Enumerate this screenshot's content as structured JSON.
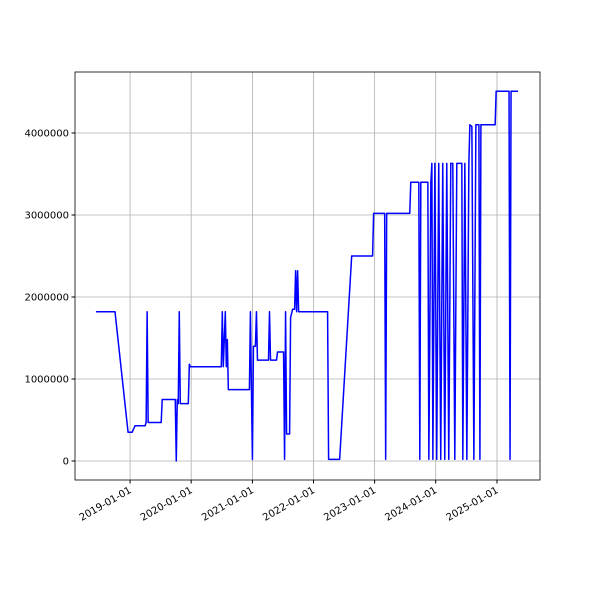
{
  "chart_data": {
    "type": "line",
    "x": [
      "2018-06-11",
      "2018-10-03",
      "2018-12-20",
      "2019-01-13",
      "2019-01-31",
      "2019-04-01",
      "2019-04-07",
      "2019-04-13",
      "2019-04-19",
      "2019-07-06",
      "2019-07-12",
      "2019-09-28",
      "2019-10-04",
      "2019-10-10",
      "2019-10-16",
      "2019-10-22",
      "2019-10-28",
      "2019-12-15",
      "2019-12-21",
      "2019-12-27",
      "2020-06-29",
      "2020-07-05",
      "2020-07-11",
      "2020-07-23",
      "2020-07-29",
      "2020-08-04",
      "2020-08-10",
      "2020-12-14",
      "2020-12-20",
      "2020-12-26",
      "2021-01-01",
      "2021-01-07",
      "2021-01-19",
      "2021-01-25",
      "2021-01-31",
      "2021-04-07",
      "2021-04-13",
      "2021-04-19",
      "2021-05-25",
      "2021-05-31",
      "2021-07-06",
      "2021-07-12",
      "2021-07-18",
      "2021-07-24",
      "2021-08-11",
      "2021-08-17",
      "2021-08-29",
      "2021-09-10",
      "2021-09-16",
      "2021-09-22",
      "2021-09-28",
      "2021-10-04",
      "2022-03-26",
      "2022-04-01",
      "2022-06-06",
      "2022-08-17",
      "2022-10-04",
      "2022-12-20",
      "2022-12-26",
      "2023-03-02",
      "2023-03-08",
      "2023-03-14",
      "2023-07-30",
      "2023-08-05",
      "2023-09-22",
      "2023-09-28",
      "2023-10-04",
      "2023-11-15",
      "2023-11-21",
      "2023-12-03",
      "2023-12-09",
      "2023-12-15",
      "2023-12-27",
      "2024-01-07",
      "2024-01-19",
      "2024-01-31",
      "2024-02-12",
      "2024-02-24",
      "2024-03-07",
      "2024-03-19",
      "2024-03-31",
      "2024-04-12",
      "2024-04-24",
      "2024-05-06",
      "2024-06-05",
      "2024-06-11",
      "2024-06-23",
      "2024-07-05",
      "2024-07-17",
      "2024-07-23",
      "2024-08-04",
      "2024-08-16",
      "2024-08-28",
      "2024-09-15",
      "2024-09-21",
      "2024-09-27",
      "2024-12-21",
      "2024-12-27",
      "2025-03-14",
      "2025-03-20",
      "2025-03-26",
      "2025-05-07"
    ],
    "series": [
      {
        "color": "#0000ff",
        "values": [
          1820000,
          1820000,
          350000,
          350000,
          430000,
          430000,
          470000,
          1820000,
          470000,
          470000,
          750000,
          750000,
          0,
          750000,
          700000,
          1820000,
          700000,
          700000,
          1180000,
          1150000,
          1150000,
          1820000,
          1150000,
          1820000,
          1150000,
          1480000,
          870000,
          870000,
          1820000,
          870000,
          20000,
          1400000,
          1400000,
          1820000,
          1230000,
          1230000,
          1820000,
          1230000,
          1230000,
          1330000,
          1330000,
          20000,
          1820000,
          330000,
          330000,
          1750000,
          1850000,
          1850000,
          2320000,
          1820000,
          2320000,
          1820000,
          1820000,
          20000,
          20000,
          2500000,
          2500000,
          2500000,
          3020000,
          3020000,
          20000,
          3020000,
          3020000,
          3400000,
          3400000,
          20000,
          3400000,
          3400000,
          20000,
          3400000,
          3630000,
          20000,
          3630000,
          20000,
          3630000,
          20000,
          3630000,
          20000,
          3630000,
          20000,
          3630000,
          3630000,
          20000,
          3630000,
          3630000,
          20000,
          3630000,
          20000,
          3630000,
          4100000,
          4080000,
          20000,
          4100000,
          4100000,
          20000,
          4100000,
          4100000,
          4510000,
          4510000,
          20000,
          4510000,
          4510000
        ]
      }
    ],
    "xlim": [
      "2018-02-06",
      "2025-09-15"
    ],
    "xticks": [
      "2019-01-01",
      "2020-01-01",
      "2021-01-01",
      "2022-01-01",
      "2023-01-01",
      "2024-01-01",
      "2025-01-01"
    ],
    "ylim": [
      -231700,
      4744000
    ],
    "yticks": [
      0,
      1000000,
      2000000,
      3000000,
      4000000
    ],
    "grid": true
  }
}
